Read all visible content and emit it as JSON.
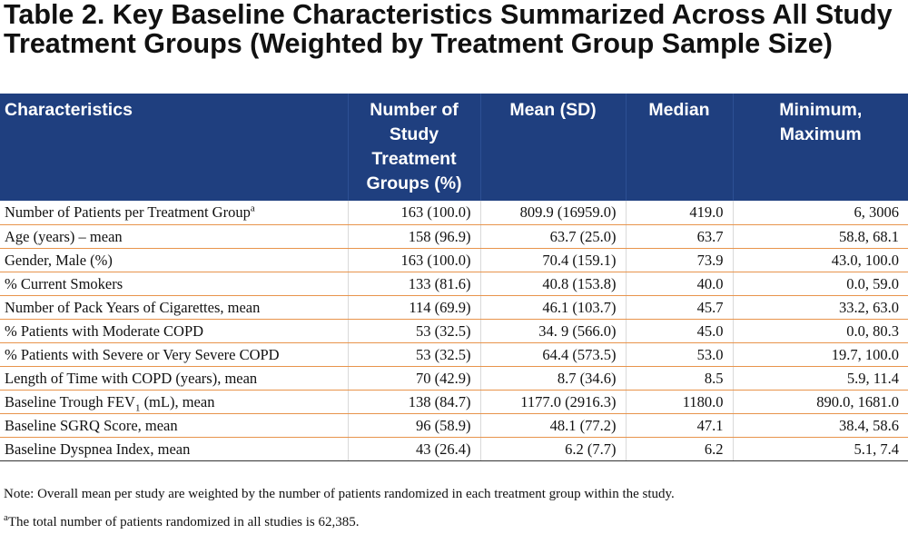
{
  "title": "Table 2. Key Baseline Characteristics Summarized Across All Study Treatment Groups (Weighted by Treatment Group Sample Size)",
  "columns": [
    "Characteristics",
    "Number of Study Treatment Groups (%)",
    "Mean (SD)",
    "Median",
    "Minimum, Maximum"
  ],
  "rows": [
    {
      "label": "Number of Patients per Treatment Group",
      "label_sup": "a",
      "n": "163 (100.0)",
      "mean": "809.9 (16959.0)",
      "median": "419.0",
      "minmax": "6, 3006"
    },
    {
      "label": "Age (years) – mean",
      "n": "158 (96.9)",
      "mean": "63.7 (25.0)",
      "median": "63.7",
      "minmax": "58.8, 68.1"
    },
    {
      "label": "Gender, Male (%)",
      "n": "163 (100.0)",
      "mean": "70.4 (159.1)",
      "median": "73.9",
      "minmax": "43.0, 100.0"
    },
    {
      "label": "% Current Smokers",
      "n": "133 (81.6)",
      "mean": "40.8 (153.8)",
      "median": "40.0",
      "minmax": "0.0, 59.0"
    },
    {
      "label": "Number of Pack Years of Cigarettes, mean",
      "n": "114 (69.9)",
      "mean": "46.1 (103.7)",
      "median": "45.7",
      "minmax": "33.2, 63.0"
    },
    {
      "label": "% Patients with Moderate COPD",
      "n": "53 (32.5)",
      "mean": "34. 9 (566.0)",
      "median": "45.0",
      "minmax": "0.0, 80.3"
    },
    {
      "label": "% Patients with Severe or Very Severe COPD",
      "n": "53 (32.5)",
      "mean": "64.4 (573.5)",
      "median": "53.0",
      "minmax": "19.7, 100.0"
    },
    {
      "label": "Length of Time with COPD (years), mean",
      "n": "70 (42.9)",
      "mean": "8.7 (34.6)",
      "median": "8.5",
      "minmax": "5.9, 11.4"
    },
    {
      "label": "Baseline Trough FEV",
      "label_sub": "1",
      "label_tail": " (mL), mean",
      "n": "138 (84.7)",
      "mean": "1177.0 (2916.3)",
      "median": "1180.0",
      "minmax": "890.0, 1681.0"
    },
    {
      "label": "Baseline SGRQ Score, mean",
      "n": "96 (58.9)",
      "mean": "48.1 (77.2)",
      "median": "47.1",
      "minmax": "38.4, 58.6"
    },
    {
      "label": "Baseline Dyspnea Index, mean",
      "n": "43 (26.4)",
      "mean": "6.2 (7.7)",
      "median": "6.2",
      "minmax": "5.1, 7.4"
    }
  ],
  "note": "Note: Overall mean per study are weighted by the number of patients randomized in each treatment group within the study.",
  "footnote_marker": "a",
  "footnote": "The total number of patients randomized in all studies is 62,385.",
  "colors": {
    "header_bg": "#1f3f7f",
    "header_text": "#ffffff",
    "row_rule": "#e8944c"
  }
}
